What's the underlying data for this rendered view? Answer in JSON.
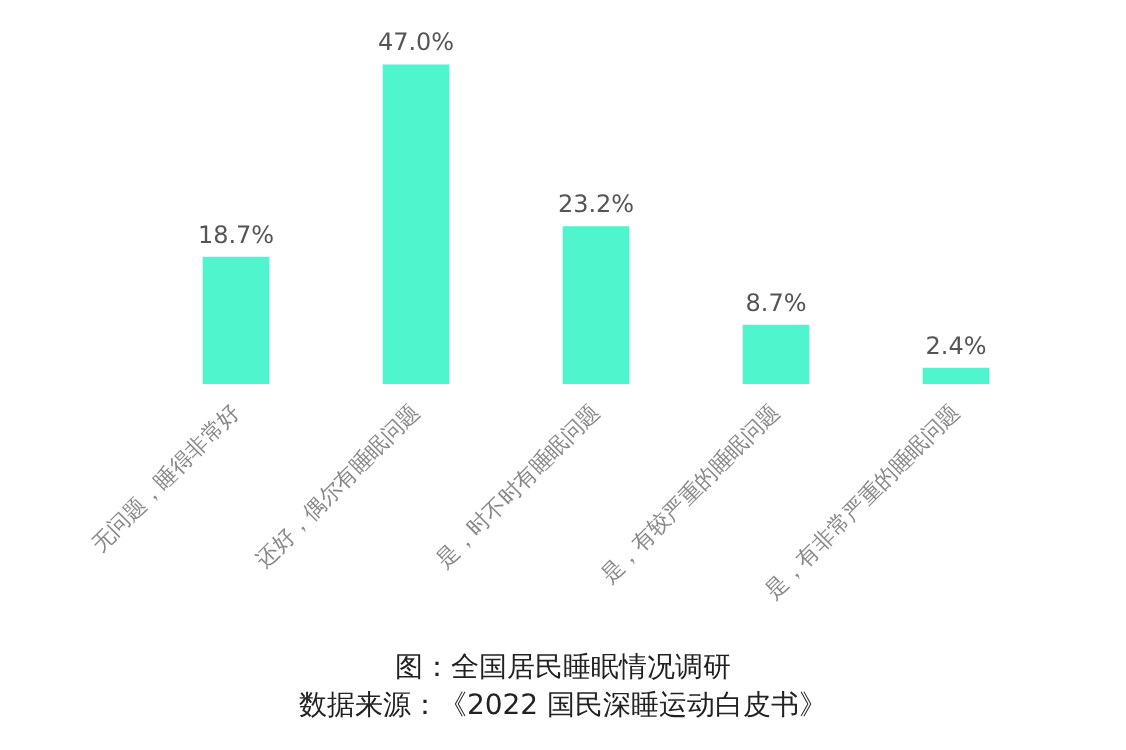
{
  "chart_data": {
    "type": "bar",
    "title": "图：全国居民睡眠情况调研",
    "annotations": [
      "数据来源：《2022 国民深睡运动白皮书》"
    ],
    "categories": [
      "无问题，睡得非常好",
      "还好，偶尔有睡眠问题",
      "是，时不时有睡眠问题",
      "是，有较严重的睡眠问题",
      "是，有非常严重的睡眠问题"
    ],
    "values": [
      18.7,
      47.0,
      23.2,
      8.7,
      2.4
    ],
    "value_labels": [
      "18.7%",
      "47.0%",
      "23.2%",
      "8.7%",
      "2.4%"
    ],
    "color": "#4ff5cc"
  }
}
